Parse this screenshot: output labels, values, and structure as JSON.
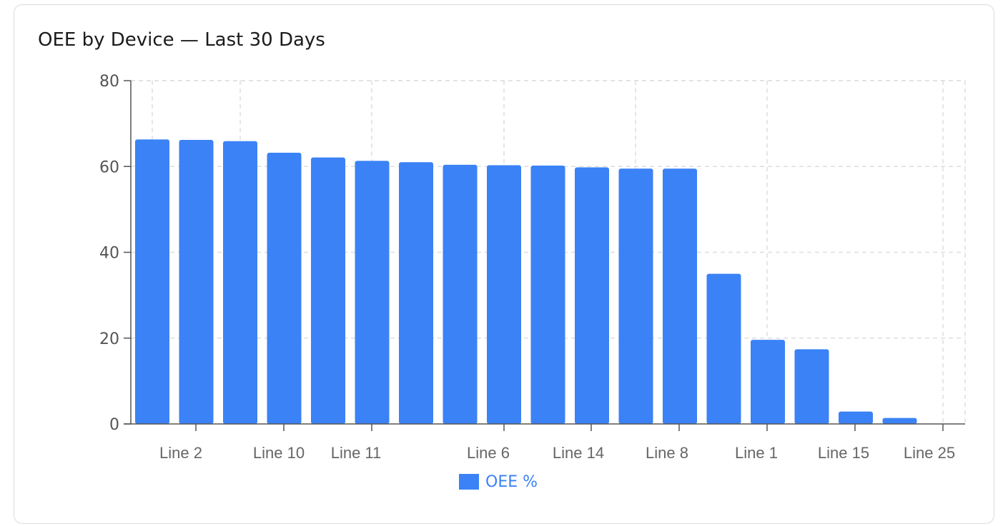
{
  "card": {
    "title": "OEE by Device — Last 30 Days"
  },
  "chart_data": {
    "type": "bar",
    "title": "OEE by Device — Last 30 Days",
    "xlabel": "",
    "ylabel": "",
    "ylim": [
      0,
      80
    ],
    "yticks": [
      0,
      20,
      40,
      60,
      80
    ],
    "grid": true,
    "legend_position": "bottom",
    "bar_color": "#3b82f6",
    "categories": [
      "Line 2",
      "",
      "Line 10",
      "",
      "Line 11",
      "",
      "",
      "Line 6",
      "",
      "Line 14",
      "",
      "Line 8",
      "",
      "Line 1",
      "",
      "Line 15",
      "",
      "Line 25"
    ],
    "x_tick_labels": [
      "Line 2",
      "Line 10",
      "Line 11",
      "Line 6",
      "Line 14",
      "Line 8",
      "Line 1",
      "Line 15",
      "Line 25"
    ],
    "series": [
      {
        "name": "OEE %",
        "values": [
          66.3,
          66.2,
          65.9,
          63.2,
          62.1,
          61.3,
          61.0,
          60.4,
          60.3,
          60.2,
          59.8,
          59.5,
          59.5,
          35.0,
          19.6,
          17.4,
          2.9,
          1.4
        ]
      }
    ]
  }
}
